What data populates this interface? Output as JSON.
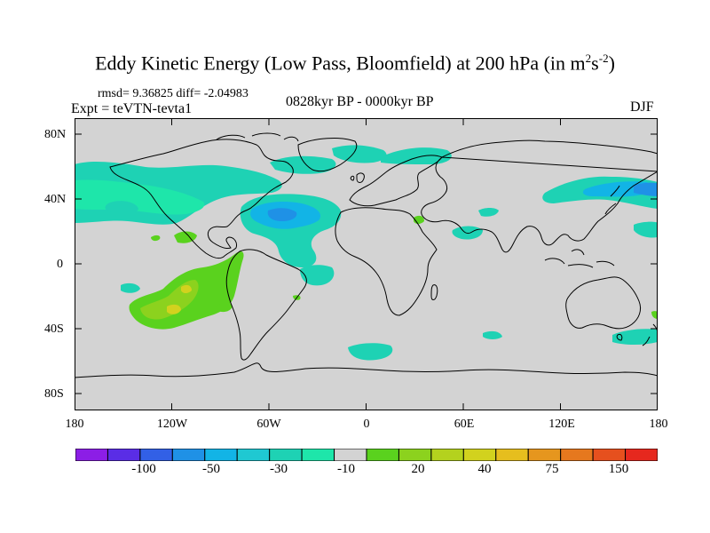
{
  "figure": {
    "title_main": "Eddy Kinetic Energy (Low Pass, Bloomfield) at 200 hPa (in m",
    "title_unit_m_exp": "2",
    "title_unit_s": "s",
    "title_unit_s_exp": "-2",
    "title_close": ")",
    "stats": "rmsd= 9.36825 diff= -2.04983",
    "experiment": "Expt = teVTN-tevta1",
    "period": "0828kyr BP - 0000kyr BP",
    "season": "DJF"
  },
  "map": {
    "projection": "cylindrical-equidistant",
    "background_color": "#d3d3d3",
    "lat_tick_labels": [
      "80N",
      "40N",
      "0",
      "40S",
      "80S"
    ],
    "lon_tick_labels": [
      "180",
      "120W",
      "60W",
      "0",
      "60E",
      "120E",
      "180"
    ]
  },
  "colorbar": {
    "colors": [
      "#8c1ee6",
      "#5a2de6",
      "#3260e6",
      "#1f91e6",
      "#12b4e6",
      "#1fc8d2",
      "#1ed2b4",
      "#1ee6aa",
      "#d3d3d3",
      "#5ad21e",
      "#8cd21e",
      "#b4d21e",
      "#d2d21e",
      "#e6be1e",
      "#e6961e",
      "#e6781e",
      "#e6501e",
      "#e6281e"
    ],
    "labels": [
      "-100",
      "-50",
      "-30",
      "-10",
      "20",
      "40",
      "75",
      "150"
    ]
  },
  "chart_data": {
    "type": "contour-map",
    "variable": "Eddy Kinetic Energy difference",
    "level_hPa": 200,
    "units": "m2 s-2",
    "regions": [
      {
        "name": "north-pacific-westerlies",
        "lat_range": [
          35,
          55
        ],
        "lon_range": [
          -180,
          -110
        ],
        "value_range": [
          -20,
          -10
        ]
      },
      {
        "name": "north-atlantic-negative",
        "lat_range": [
          20,
          40
        ],
        "lon_range": [
          -70,
          -10
        ],
        "value_range": [
          -40,
          -10
        ]
      },
      {
        "name": "arctic-north-america",
        "lat_range": [
          50,
          70
        ],
        "lon_range": [
          -90,
          -60
        ],
        "value_range": [
          -20,
          -10
        ]
      },
      {
        "name": "west-pacific-jet",
        "lat_range": [
          35,
          55
        ],
        "lon_range": [
          110,
          180
        ],
        "value_range": [
          -30,
          -10
        ]
      },
      {
        "name": "south-pacific-positive",
        "lat_range": [
          -45,
          -10
        ],
        "lon_range": [
          -160,
          -80
        ],
        "value_range": [
          10,
          40
        ]
      },
      {
        "name": "southern-ocean-negative",
        "lat_range": [
          -50,
          -40
        ],
        "lon_range": [
          -20,
          10
        ],
        "value_range": [
          -20,
          -10
        ]
      }
    ]
  }
}
